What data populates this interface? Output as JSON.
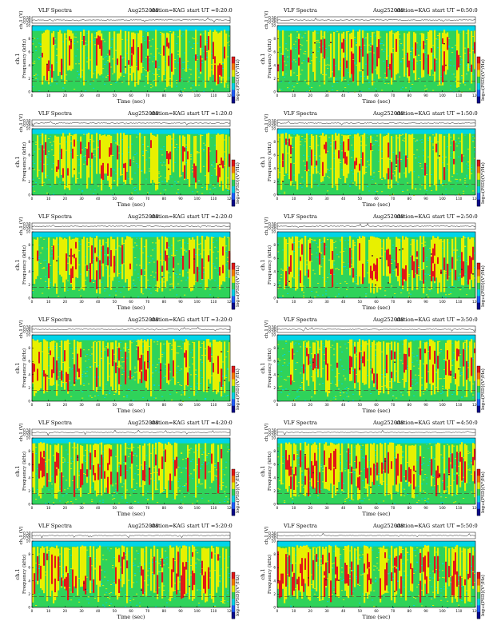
{
  "page": {
    "panel_title": "VLF Spectra",
    "date": "Aug252008",
    "station": "station=KAG",
    "x_axis_label": "Time (sec)",
    "top_axis_label": "ch.1 (V)",
    "y_axis_label_line1": "ch.1",
    "y_axis_label_line2": "Frequency (kHz)",
    "colorbar_label": "log₁₀(PSD)(V²/Hz)"
  },
  "colors": {
    "background": "#00d4e8",
    "green": "#2fd35a",
    "yellow": "#e8f000",
    "red": "#e21717",
    "dark": "#5a2020"
  },
  "chart_data": [
    {
      "type": "heatmap",
      "ut_label": "start UT =0:20:0",
      "xlim": [
        0,
        120
      ],
      "ylim": [
        0,
        10
      ],
      "x_ticks": [
        0,
        10,
        20,
        30,
        40,
        50,
        60,
        70,
        80,
        90,
        100,
        110,
        120
      ],
      "y_ticks": [
        0,
        2,
        4,
        6,
        8,
        10
      ],
      "top_ylim": [
        -0.5,
        0.5
      ],
      "top_ticks": [
        "0.50",
        "0.00",
        "-0.50"
      ],
      "intensity": 0.45,
      "seed": 11
    },
    {
      "type": "heatmap",
      "ut_label": "start UT =0:50:0",
      "xlim": [
        0,
        120
      ],
      "ylim": [
        0,
        10
      ],
      "x_ticks": [
        0,
        10,
        20,
        30,
        40,
        50,
        60,
        70,
        80,
        90,
        100,
        110,
        120
      ],
      "y_ticks": [
        0,
        2,
        4,
        6,
        8,
        10
      ],
      "top_ylim": [
        -0.5,
        0.5
      ],
      "top_ticks": [
        "0.50",
        "0.00",
        "-0.50"
      ],
      "intensity": 0.45,
      "seed": 23
    },
    {
      "type": "heatmap",
      "ut_label": "start UT =1:20:0",
      "xlim": [
        0,
        120
      ],
      "ylim": [
        0,
        10
      ],
      "x_ticks": [
        0,
        10,
        20,
        30,
        40,
        50,
        60,
        70,
        80,
        90,
        100,
        110,
        120
      ],
      "y_ticks": [
        0,
        2,
        4,
        6,
        8,
        10
      ],
      "top_ylim": [
        -0.5,
        0.5
      ],
      "top_ticks": [
        "0.50",
        "0.00",
        "-0.50"
      ],
      "intensity": 0.35,
      "seed": 37
    },
    {
      "type": "heatmap",
      "ut_label": "start UT =1:50:0",
      "xlim": [
        0,
        120
      ],
      "ylim": [
        0,
        10
      ],
      "x_ticks": [
        0,
        10,
        20,
        30,
        40,
        50,
        60,
        70,
        80,
        90,
        100,
        110,
        120
      ],
      "y_ticks": [
        0,
        2,
        4,
        6,
        8,
        10
      ],
      "top_ylim": [
        -0.5,
        0.5
      ],
      "top_ticks": [
        "0.50",
        "0.00",
        "-0.50"
      ],
      "intensity": 0.35,
      "seed": 41
    },
    {
      "type": "heatmap",
      "ut_label": "start UT =2:20:0",
      "xlim": [
        0,
        120
      ],
      "ylim": [
        0,
        10
      ],
      "x_ticks": [
        0,
        10,
        20,
        30,
        40,
        50,
        60,
        70,
        80,
        90,
        100,
        110,
        120
      ],
      "y_ticks": [
        0,
        2,
        4,
        6,
        8,
        10
      ],
      "top_ylim": [
        -0.5,
        0.5
      ],
      "top_ticks": [
        "0.50",
        "0.00",
        "-0.50"
      ],
      "intensity": 0.4,
      "seed": 53
    },
    {
      "type": "heatmap",
      "ut_label": "start UT =2:50:0",
      "xlim": [
        0,
        120
      ],
      "ylim": [
        0,
        10
      ],
      "x_ticks": [
        0,
        10,
        20,
        30,
        40,
        50,
        60,
        70,
        80,
        90,
        100,
        110,
        120
      ],
      "y_ticks": [
        0,
        2,
        4,
        6,
        8,
        10
      ],
      "top_ylim": [
        -0.5,
        0.5
      ],
      "top_ticks": [
        "0.50",
        "0.00",
        "-0.50"
      ],
      "intensity": 0.4,
      "seed": 67
    },
    {
      "type": "heatmap",
      "ut_label": "start UT =3:20:0",
      "xlim": [
        0,
        120
      ],
      "ylim": [
        0,
        10
      ],
      "x_ticks": [
        0,
        10,
        20,
        30,
        40,
        50,
        60,
        70,
        80,
        90,
        100,
        110,
        120
      ],
      "y_ticks": [
        0,
        2,
        4,
        6,
        8,
        10
      ],
      "top_ylim": [
        -0.5,
        0.5
      ],
      "top_ticks": [
        "0.50",
        "0.00",
        "-0.50"
      ],
      "intensity": 0.4,
      "seed": 79
    },
    {
      "type": "heatmap",
      "ut_label": "start UT =3:50:0",
      "xlim": [
        0,
        120
      ],
      "ylim": [
        0,
        10
      ],
      "x_ticks": [
        0,
        10,
        20,
        30,
        40,
        50,
        60,
        70,
        80,
        90,
        100,
        110,
        120
      ],
      "y_ticks": [
        0,
        2,
        4,
        6,
        8,
        10
      ],
      "top_ylim": [
        -0.5,
        0.5
      ],
      "top_ticks": [
        "0.50",
        "0.00",
        "-0.50"
      ],
      "intensity": 0.4,
      "seed": 83
    },
    {
      "type": "heatmap",
      "ut_label": "start UT =4:20:0",
      "xlim": [
        0,
        120
      ],
      "ylim": [
        0,
        10
      ],
      "x_ticks": [
        0,
        10,
        20,
        30,
        40,
        50,
        60,
        70,
        80,
        90,
        100,
        110,
        120
      ],
      "y_ticks": [
        0,
        2,
        4,
        6,
        8,
        10
      ],
      "top_ylim": [
        -0.5,
        0.5
      ],
      "top_ticks": [
        "0.50",
        "0.00",
        "-0.50"
      ],
      "intensity": 0.55,
      "seed": 97
    },
    {
      "type": "heatmap",
      "ut_label": "start UT =4:50:0",
      "xlim": [
        0,
        120
      ],
      "ylim": [
        0,
        10
      ],
      "x_ticks": [
        0,
        10,
        20,
        30,
        40,
        50,
        60,
        70,
        80,
        90,
        100,
        110,
        120
      ],
      "y_ticks": [
        0,
        2,
        4,
        6,
        8,
        10
      ],
      "top_ylim": [
        -0.5,
        0.5
      ],
      "top_ticks": [
        "0.50",
        "0.00",
        "-0.50"
      ],
      "intensity": 0.55,
      "seed": 101
    },
    {
      "type": "heatmap",
      "ut_label": "start UT =5:20:0",
      "xlim": [
        0,
        120
      ],
      "ylim": [
        0,
        10
      ],
      "x_ticks": [
        0,
        10,
        20,
        30,
        40,
        50,
        60,
        70,
        80,
        90,
        100,
        110,
        120
      ],
      "y_ticks": [
        0,
        2,
        4,
        6,
        8,
        10
      ],
      "top_ylim": [
        -0.5,
        0.5
      ],
      "top_ticks": [
        "0.50",
        "0.00",
        "-0.50"
      ],
      "intensity": 0.7,
      "seed": 113
    },
    {
      "type": "heatmap",
      "ut_label": "start UT =5:50:0",
      "xlim": [
        0,
        120
      ],
      "ylim": [
        0,
        10
      ],
      "x_ticks": [
        0,
        10,
        20,
        30,
        40,
        50,
        60,
        70,
        80,
        90,
        100,
        110,
        120
      ],
      "y_ticks": [
        0,
        2,
        4,
        6,
        8,
        10
      ],
      "top_ylim": [
        -0.5,
        0.5
      ],
      "top_ticks": [
        "0.50",
        "0.00",
        "-0.50"
      ],
      "intensity": 0.7,
      "seed": 127
    }
  ]
}
